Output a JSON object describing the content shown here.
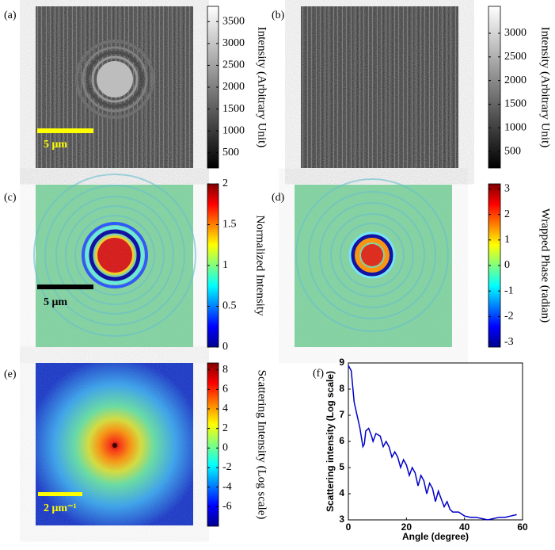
{
  "panel_labels": [
    "(a)",
    "(b)",
    "(c)",
    "(d)",
    "(e)",
    "(f)"
  ],
  "panels": [
    {
      "scalebar": "5 μm",
      "colorbar": {
        "label": "Intensity (Arbitrary Unit)",
        "colormap": "gray",
        "lim": [
          150,
          3850
        ],
        "ticks": [
          500,
          1000,
          1500,
          2000,
          2500,
          3000,
          3500
        ]
      }
    },
    {
      "colorbar": {
        "label": "Intensity (Arbitrary Unit)",
        "colormap": "gray",
        "lim": [
          150,
          3570
        ],
        "ticks": [
          500,
          1000,
          1500,
          2000,
          2500,
          3000
        ]
      }
    },
    {
      "scalebar": "5 μm",
      "colorbar": {
        "label": "Normalized Intensity",
        "colormap": "jet",
        "lim": [
          0,
          2
        ],
        "ticks": [
          0,
          0.5,
          1,
          1.5,
          2
        ]
      }
    },
    {
      "colorbar": {
        "label": "Wrapped Phase (radian)",
        "colormap": "jet",
        "lim": [
          -3.2,
          3.2
        ],
        "ticks": [
          -3,
          -2,
          -1,
          0,
          1,
          2,
          3
        ]
      }
    },
    {
      "scalebar": "2 μm⁻¹",
      "colorbar": {
        "label": "Scattering Intensity (Log scale)",
        "colormap": "jet",
        "lim": [
          -8,
          8.7
        ],
        "ticks": [
          -6,
          -4,
          -2,
          0,
          2,
          4,
          6,
          8
        ]
      }
    }
  ],
  "chart_data": {
    "type": "line",
    "xlabel": "Angle (degree)",
    "ylabel": "Scattering intensity (Log scale)",
    "xlim": [
      0,
      60
    ],
    "ylim": [
      3,
      9
    ],
    "xticks": [
      0,
      20,
      40,
      60
    ],
    "yticks": [
      3,
      4,
      5,
      6,
      7,
      8,
      9
    ],
    "x": [
      0,
      1,
      2,
      3,
      4,
      5,
      5.5,
      6,
      7,
      8,
      8.5,
      9.5,
      11,
      12,
      13,
      14,
      15,
      16,
      17,
      18,
      19,
      20,
      21,
      22,
      23,
      24,
      25,
      26,
      27,
      28,
      29,
      30,
      31,
      32,
      33,
      34,
      35,
      36,
      38,
      40,
      42,
      44,
      46,
      48,
      50,
      52,
      54,
      56,
      58
    ],
    "series": [
      {
        "color": "#0000c8",
        "values": [
          8.9,
          8.7,
          7.5,
          7.0,
          6.5,
          5.8,
          5.9,
          6.4,
          6.5,
          6.2,
          6.0,
          6.3,
          6.2,
          5.8,
          6.0,
          5.8,
          5.4,
          5.6,
          5.4,
          5.0,
          5.3,
          5.1,
          4.7,
          5.0,
          4.8,
          4.3,
          4.7,
          4.5,
          4.0,
          4.4,
          4.2,
          3.7,
          4.1,
          3.8,
          3.5,
          3.7,
          3.4,
          3.3,
          3.3,
          3.15,
          3.1,
          3.1,
          3.05,
          3.0,
          3.05,
          3.1,
          3.1,
          3.15,
          3.2
        ]
      }
    ]
  }
}
